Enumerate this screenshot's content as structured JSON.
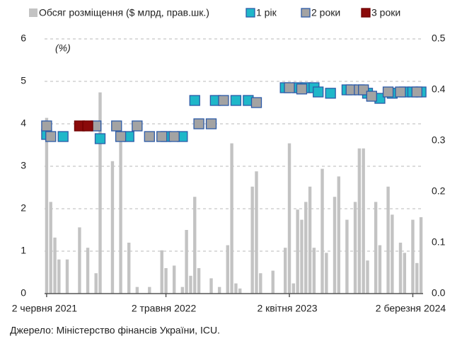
{
  "chart_data": {
    "type": "bar",
    "y_annotation": "(%)",
    "source": "Джерело: Міністерство фінансів України, ICU.",
    "categories": [
      "2 червня 2021",
      null,
      null,
      null,
      null,
      null,
      null,
      null,
      null,
      null,
      null,
      null,
      null,
      null,
      null,
      null,
      null,
      null,
      null,
      null,
      null,
      null,
      null,
      null,
      null,
      null,
      null,
      null,
      null,
      "2 травня 2022",
      null,
      null,
      null,
      null,
      null,
      null,
      null,
      null,
      null,
      null,
      null,
      null,
      null,
      null,
      null,
      null,
      null,
      null,
      null,
      null,
      null,
      null,
      null,
      null,
      null,
      null,
      null,
      null,
      null,
      "2 квітня 2023",
      null,
      null,
      null,
      null,
      null,
      null,
      null,
      null,
      null,
      null,
      null,
      null,
      null,
      null,
      null,
      null,
      null,
      null,
      null,
      null,
      null,
      null,
      null,
      null,
      null,
      null,
      null,
      null,
      null,
      "2 березня 2024",
      null,
      null
    ],
    "ylim": [
      0,
      6
    ],
    "yticks": [
      0,
      1,
      2,
      3,
      4,
      5,
      6
    ],
    "y2lim": [
      0,
      0.5
    ],
    "y2ticks": [
      {
        "value": 0,
        "label": "0.0"
      },
      0.1,
      0.2,
      0.3,
      0.4,
      0.5
    ],
    "grid": true,
    "series": [
      {
        "name": "Обсяг розміщення ($ млрд, прав.шк.)",
        "type": "bar",
        "axis": "y2",
        "color": "#c3c3c3",
        "values": [
          0.345,
          0.18,
          0.11,
          0.067,
          null,
          0.067,
          null,
          null,
          0.13,
          null,
          0.09,
          null,
          0.04,
          0.395,
          null,
          null,
          0.26,
          null,
          0.31,
          null,
          0.1,
          null,
          0.013,
          null,
          null,
          0.013,
          null,
          null,
          0.085,
          0.05,
          null,
          0.055,
          null,
          0.013,
          0.125,
          0.035,
          0.19,
          0.05,
          null,
          null,
          0.03,
          null,
          0.013,
          null,
          0.095,
          0.295,
          0.02,
          0.01,
          null,
          null,
          0.21,
          0.24,
          0.04,
          null,
          null,
          0.045,
          null,
          null,
          0.09,
          0.295,
          0.02,
          0.165,
          0.145,
          0.18,
          0.21,
          0.09,
          null,
          0.245,
          0.08,
          null,
          0.19,
          0.23,
          null,
          0.145,
          null,
          0.18,
          0.285,
          0.285,
          0.065,
          null,
          0.18,
          0.095,
          null,
          0.21,
          0.155,
          null,
          0.1,
          0.08,
          null,
          0.145,
          0.06,
          0.15
        ]
      },
      {
        "name": "1 рік",
        "type": "scatter",
        "color": "#1fb7c9",
        "values": [
          3.75,
          null,
          null,
          null,
          3.7,
          null,
          null,
          null,
          null,
          null,
          null,
          null,
          null,
          3.65,
          null,
          null,
          null,
          null,
          null,
          null,
          3.7,
          null,
          null,
          null,
          null,
          null,
          null,
          null,
          null,
          3.7,
          null,
          null,
          null,
          3.7,
          null,
          null,
          4.55,
          null,
          null,
          null,
          null,
          4.55,
          null,
          null,
          null,
          null,
          4.55,
          null,
          null,
          4.55,
          null,
          null,
          null,
          null,
          null,
          null,
          null,
          null,
          4.85,
          null,
          null,
          4.85,
          null,
          4.85,
          null,
          4.85,
          4.75,
          null,
          null,
          4.72,
          null,
          null,
          null,
          4.8,
          null,
          null,
          null,
          null,
          4.72,
          null,
          null,
          4.6,
          null,
          null,
          4.72,
          null,
          null,
          4.75,
          null,
          4.75,
          null,
          4.75
        ]
      },
      {
        "name": "2 роки",
        "type": "scatter",
        "color": "#a3a3a3",
        "values": [
          3.95,
          3.7,
          null,
          null,
          null,
          null,
          null,
          null,
          null,
          null,
          null,
          null,
          3.95,
          null,
          null,
          null,
          null,
          3.95,
          3.7,
          null,
          null,
          null,
          3.95,
          null,
          null,
          3.7,
          null,
          null,
          3.7,
          null,
          null,
          3.7,
          null,
          null,
          null,
          null,
          null,
          4.0,
          null,
          null,
          4.0,
          null,
          null,
          4.55,
          null,
          null,
          null,
          null,
          null,
          null,
          null,
          4.5,
          null,
          null,
          null,
          null,
          null,
          null,
          null,
          4.85,
          null,
          null,
          4.82,
          null,
          null,
          null,
          null,
          null,
          null,
          null,
          null,
          null,
          null,
          null,
          4.8,
          null,
          4.8,
          4.8,
          null,
          4.65,
          null,
          null,
          null,
          4.75,
          null,
          null,
          4.75,
          null,
          null,
          null,
          4.75,
          null
        ]
      },
      {
        "name": "3 роки",
        "type": "scatter",
        "color": "#8b0a0a",
        "values": [
          null,
          null,
          null,
          null,
          null,
          null,
          null,
          null,
          3.95,
          null,
          3.95,
          null,
          null,
          null,
          null,
          null,
          null,
          null,
          null,
          null,
          null,
          null,
          null,
          null,
          null,
          null,
          null,
          null,
          null,
          null,
          null,
          null,
          null,
          null,
          null,
          null,
          null,
          null,
          null,
          null,
          null,
          null,
          null,
          null,
          null,
          null,
          null,
          null,
          null,
          null,
          null,
          null,
          null,
          null,
          null,
          null,
          null,
          null,
          null,
          null,
          null,
          null,
          null,
          null,
          null,
          null,
          null,
          null,
          null,
          null,
          null,
          null,
          null,
          null,
          null,
          null,
          null,
          null,
          null,
          null,
          null,
          null,
          null,
          null,
          null,
          null,
          null,
          null,
          null,
          null,
          null,
          null
        ]
      }
    ]
  }
}
